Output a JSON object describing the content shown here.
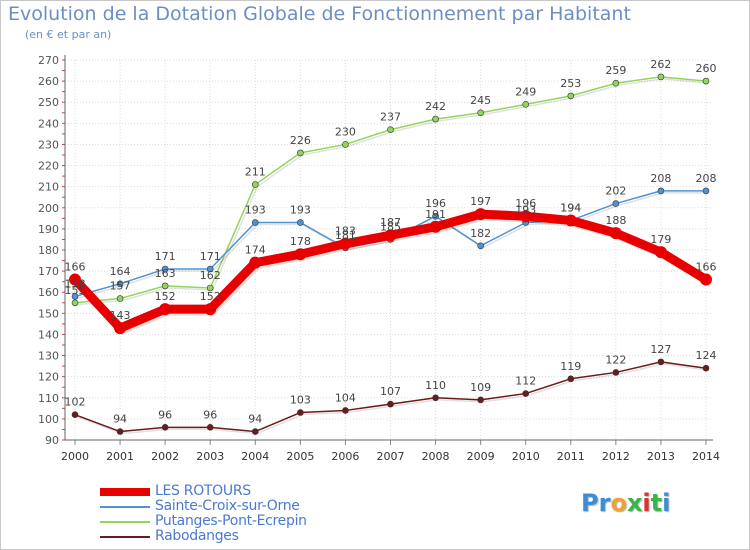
{
  "title": "Evolution de la Dotation Globale de Fonctionnement par Habitant",
  "subtitle": "(en € et par an)",
  "logo": {
    "letters": [
      "P",
      "r",
      "o",
      "x",
      "i",
      "t",
      "i"
    ],
    "colors": [
      "#3b8ed6",
      "#3b8ed6",
      "#f2a13a",
      "#3bb54a",
      "#e03030",
      "#3bb54a",
      "#3b8ed6"
    ]
  },
  "chart_data": {
    "type": "line",
    "x": [
      2000,
      2001,
      2002,
      2003,
      2004,
      2005,
      2006,
      2007,
      2008,
      2009,
      2010,
      2011,
      2012,
      2013,
      2014
    ],
    "ylim": [
      90,
      270
    ],
    "yticks": [
      90,
      100,
      110,
      120,
      130,
      140,
      150,
      160,
      170,
      180,
      190,
      200,
      210,
      220,
      230,
      240,
      250,
      260,
      270
    ],
    "grid": true,
    "series": [
      {
        "name": "Rabodanges",
        "color": "#6b1b1b",
        "emphasis": false,
        "values": [
          102,
          94,
          96,
          96,
          94,
          103,
          104,
          107,
          110,
          109,
          112,
          119,
          122,
          127,
          124
        ]
      },
      {
        "name": "Putanges-Pont-Ecrepin",
        "color": "#93d45c",
        "emphasis": false,
        "values": [
          155,
          157,
          163,
          162,
          211,
          226,
          230,
          237,
          242,
          245,
          249,
          253,
          259,
          262,
          260
        ]
      },
      {
        "name": "Sainte-Croix-sur-Orne",
        "color": "#4f94d1",
        "emphasis": false,
        "values": [
          158,
          164,
          171,
          171,
          193,
          193,
          181,
          185,
          196,
          182,
          193,
          194,
          202,
          208,
          208
        ]
      },
      {
        "name": "LES ROTOURS",
        "color": "#e80000",
        "emphasis": true,
        "values": [
          166,
          143,
          152,
          152,
          174,
          178,
          183,
          187,
          191,
          197,
          196,
          194,
          188,
          179,
          166
        ]
      }
    ]
  }
}
